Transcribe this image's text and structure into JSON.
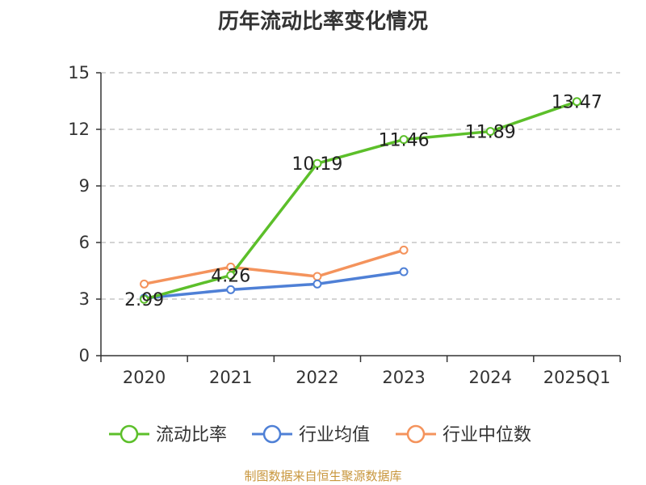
{
  "chart_data": {
    "type": "line",
    "title": "历年流动比率变化情况",
    "categories": [
      "2020",
      "2021",
      "2022",
      "2023",
      "2024",
      "2025Q1"
    ],
    "ylim": [
      0,
      15
    ],
    "yticks": [
      0,
      3,
      6,
      9,
      12,
      15
    ],
    "grid": true,
    "legend_position": "bottom",
    "series": [
      {
        "name": "流动比率",
        "color": "#5cbf2a",
        "values": [
          2.99,
          4.26,
          10.19,
          11.46,
          11.89,
          13.47
        ],
        "labels": [
          "2.99",
          "4.26",
          "10.19",
          "11.46",
          "11.89",
          "13.47"
        ]
      },
      {
        "name": "行业均值",
        "color": "#4f80d6",
        "values": [
          3.05,
          3.5,
          3.8,
          4.45,
          null,
          null
        ]
      },
      {
        "name": "行业中位数",
        "color": "#f4935c",
        "values": [
          3.8,
          4.7,
          4.2,
          5.6,
          null,
          null
        ]
      }
    ]
  },
  "footer": {
    "source": "制图数据来自恒生聚源数据库"
  }
}
